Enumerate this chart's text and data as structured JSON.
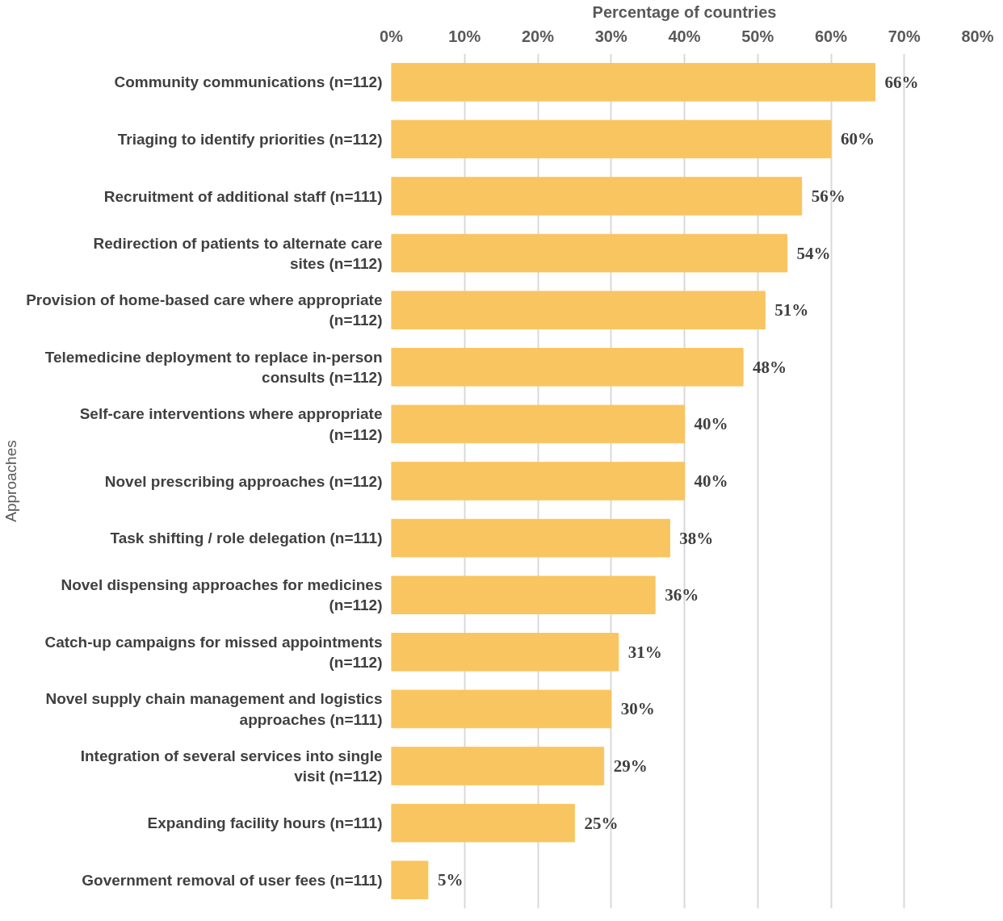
{
  "chart_data": {
    "type": "bar",
    "orientation": "horizontal",
    "xlabel": "Percentage of countries",
    "ylabel": "Approaches",
    "categories": [
      "Community communications (n=112)",
      "Triaging to identify priorities (n=112)",
      "Recruitment of additional staff (n=111)",
      "Redirection of patients to alternate care sites (n=112)",
      "Provision of home-based care where appropriate (n=112)",
      "Telemedicine deployment to replace in-person consults (n=112)",
      "Self-care interventions where appropriate (n=112)",
      "Novel prescribing approaches (n=112)",
      "Task shifting / role delegation (n=111)",
      "Novel dispensing approaches for medicines (n=112)",
      "Catch-up campaigns for missed appointments (n=112)",
      "Novel supply chain management and logistics approaches (n=111)",
      "Integration of several services into single visit (n=112)",
      "Expanding facility hours (n=111)",
      "Government removal of user fees (n=111)"
    ],
    "values": [
      66,
      60,
      56,
      54,
      51,
      48,
      40,
      40,
      38,
      36,
      31,
      30,
      29,
      25,
      5
    ],
    "value_labels": [
      "66%",
      "60%",
      "56%",
      "54%",
      "51%",
      "48%",
      "40%",
      "40%",
      "38%",
      "36%",
      "31%",
      "30%",
      "29%",
      "25%",
      "5%"
    ],
    "color": "#f9c560",
    "xlim": [
      0,
      80
    ],
    "xticks": [
      {
        "value": 0,
        "label": "0%"
      },
      {
        "value": 10,
        "label": "10%"
      },
      {
        "value": 20,
        "label": "20%"
      },
      {
        "value": 30,
        "label": "30%"
      },
      {
        "value": 40,
        "label": "40%"
      },
      {
        "value": 50,
        "label": "50%"
      },
      {
        "value": 60,
        "label": "60%"
      },
      {
        "value": 70,
        "label": "70%"
      },
      {
        "value": 80,
        "label": "80%"
      }
    ],
    "grid": "x"
  }
}
